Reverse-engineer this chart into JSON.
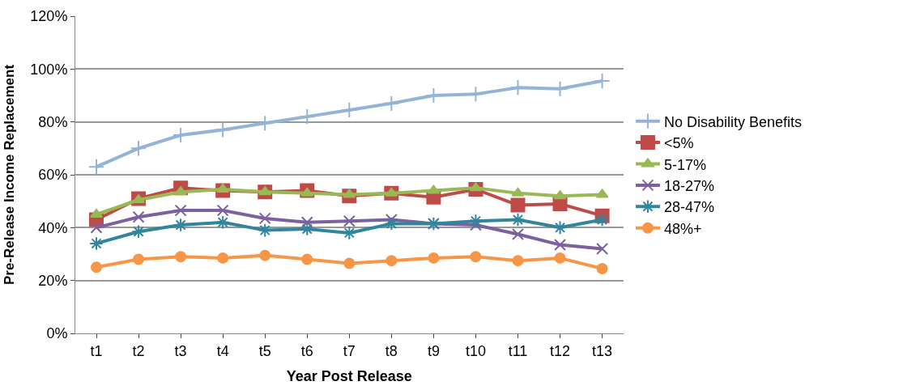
{
  "chart_data": {
    "type": "line",
    "xlabel": "Year Post Release",
    "ylabel": "Pre-Release Income Replacement",
    "categories": [
      "t1",
      "t2",
      "t3",
      "t4",
      "t5",
      "t6",
      "t7",
      "t8",
      "t9",
      "t10",
      "t11",
      "t12",
      "t13"
    ],
    "ylim": [
      0,
      120
    ],
    "yticks": [
      {
        "value": 0,
        "label": "0%"
      },
      {
        "value": 20,
        "label": "20%"
      },
      {
        "value": 40,
        "label": "40%"
      },
      {
        "value": 60,
        "label": "60%"
      },
      {
        "value": 80,
        "label": "80%"
      },
      {
        "value": 100,
        "label": "100%"
      },
      {
        "value": 120,
        "label": "120%"
      }
    ],
    "grid": "y",
    "legend": "right",
    "series": [
      {
        "name": "No Disability Benefits",
        "color": "#95b3d7",
        "marker": "plus",
        "values": [
          63,
          70,
          75,
          77,
          79.5,
          82,
          84.5,
          87,
          90,
          90.5,
          93,
          92.5,
          95.5
        ]
      },
      {
        "name": "<5%",
        "color": "#be4b48",
        "marker": "square",
        "values": [
          43,
          51,
          55,
          54,
          53.5,
          54,
          52,
          53,
          51.5,
          54.5,
          48.5,
          49,
          44.5
        ]
      },
      {
        "name": "5-17%",
        "color": "#98b954",
        "marker": "triangle",
        "values": [
          45,
          50.5,
          53.5,
          54.5,
          53.5,
          53,
          52.5,
          53,
          54,
          55,
          53,
          52,
          52.5
        ]
      },
      {
        "name": "18-27%",
        "color": "#7d60a0",
        "marker": "x",
        "values": [
          40,
          44,
          46.5,
          46.5,
          43.5,
          42,
          42.5,
          43,
          41.5,
          41,
          37.5,
          33.5,
          32
        ]
      },
      {
        "name": "28-47%",
        "color": "#31859c",
        "marker": "cross",
        "values": [
          34,
          38.5,
          41,
          42,
          39,
          39.5,
          38,
          41.5,
          41.5,
          42.5,
          43,
          40,
          43
        ]
      },
      {
        "name": "48%+",
        "color": "#f79646",
        "marker": "circle",
        "values": [
          25,
          28,
          29,
          28.5,
          29.5,
          28,
          26.5,
          27.5,
          28.5,
          29,
          27.5,
          28.5,
          24.5
        ]
      }
    ]
  }
}
